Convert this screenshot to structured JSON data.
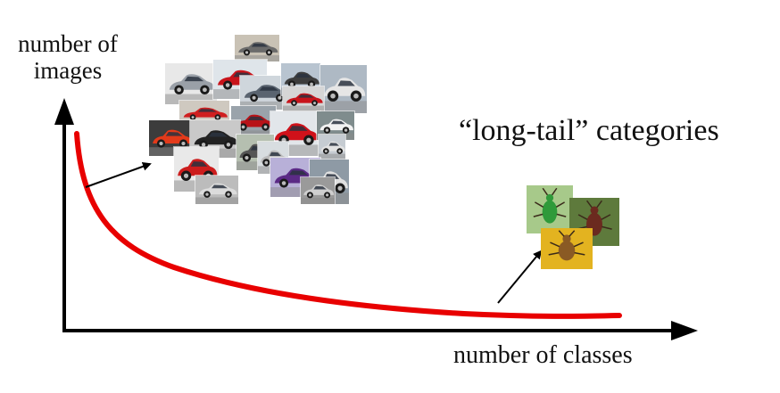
{
  "labels": {
    "y_axis": "number of images",
    "y_axis_line1": "number of",
    "y_axis_line2": "images",
    "x_axis": "number of classes",
    "annotation": "“long-tail” categories"
  },
  "colors": {
    "curve": "#e80000",
    "axes": "#000000",
    "text": "#111111"
  },
  "head_cluster": {
    "subject": "cars",
    "icon": "car-photo"
  },
  "tail_cluster": {
    "subject": "insects",
    "icon": "insect-photo"
  }
}
